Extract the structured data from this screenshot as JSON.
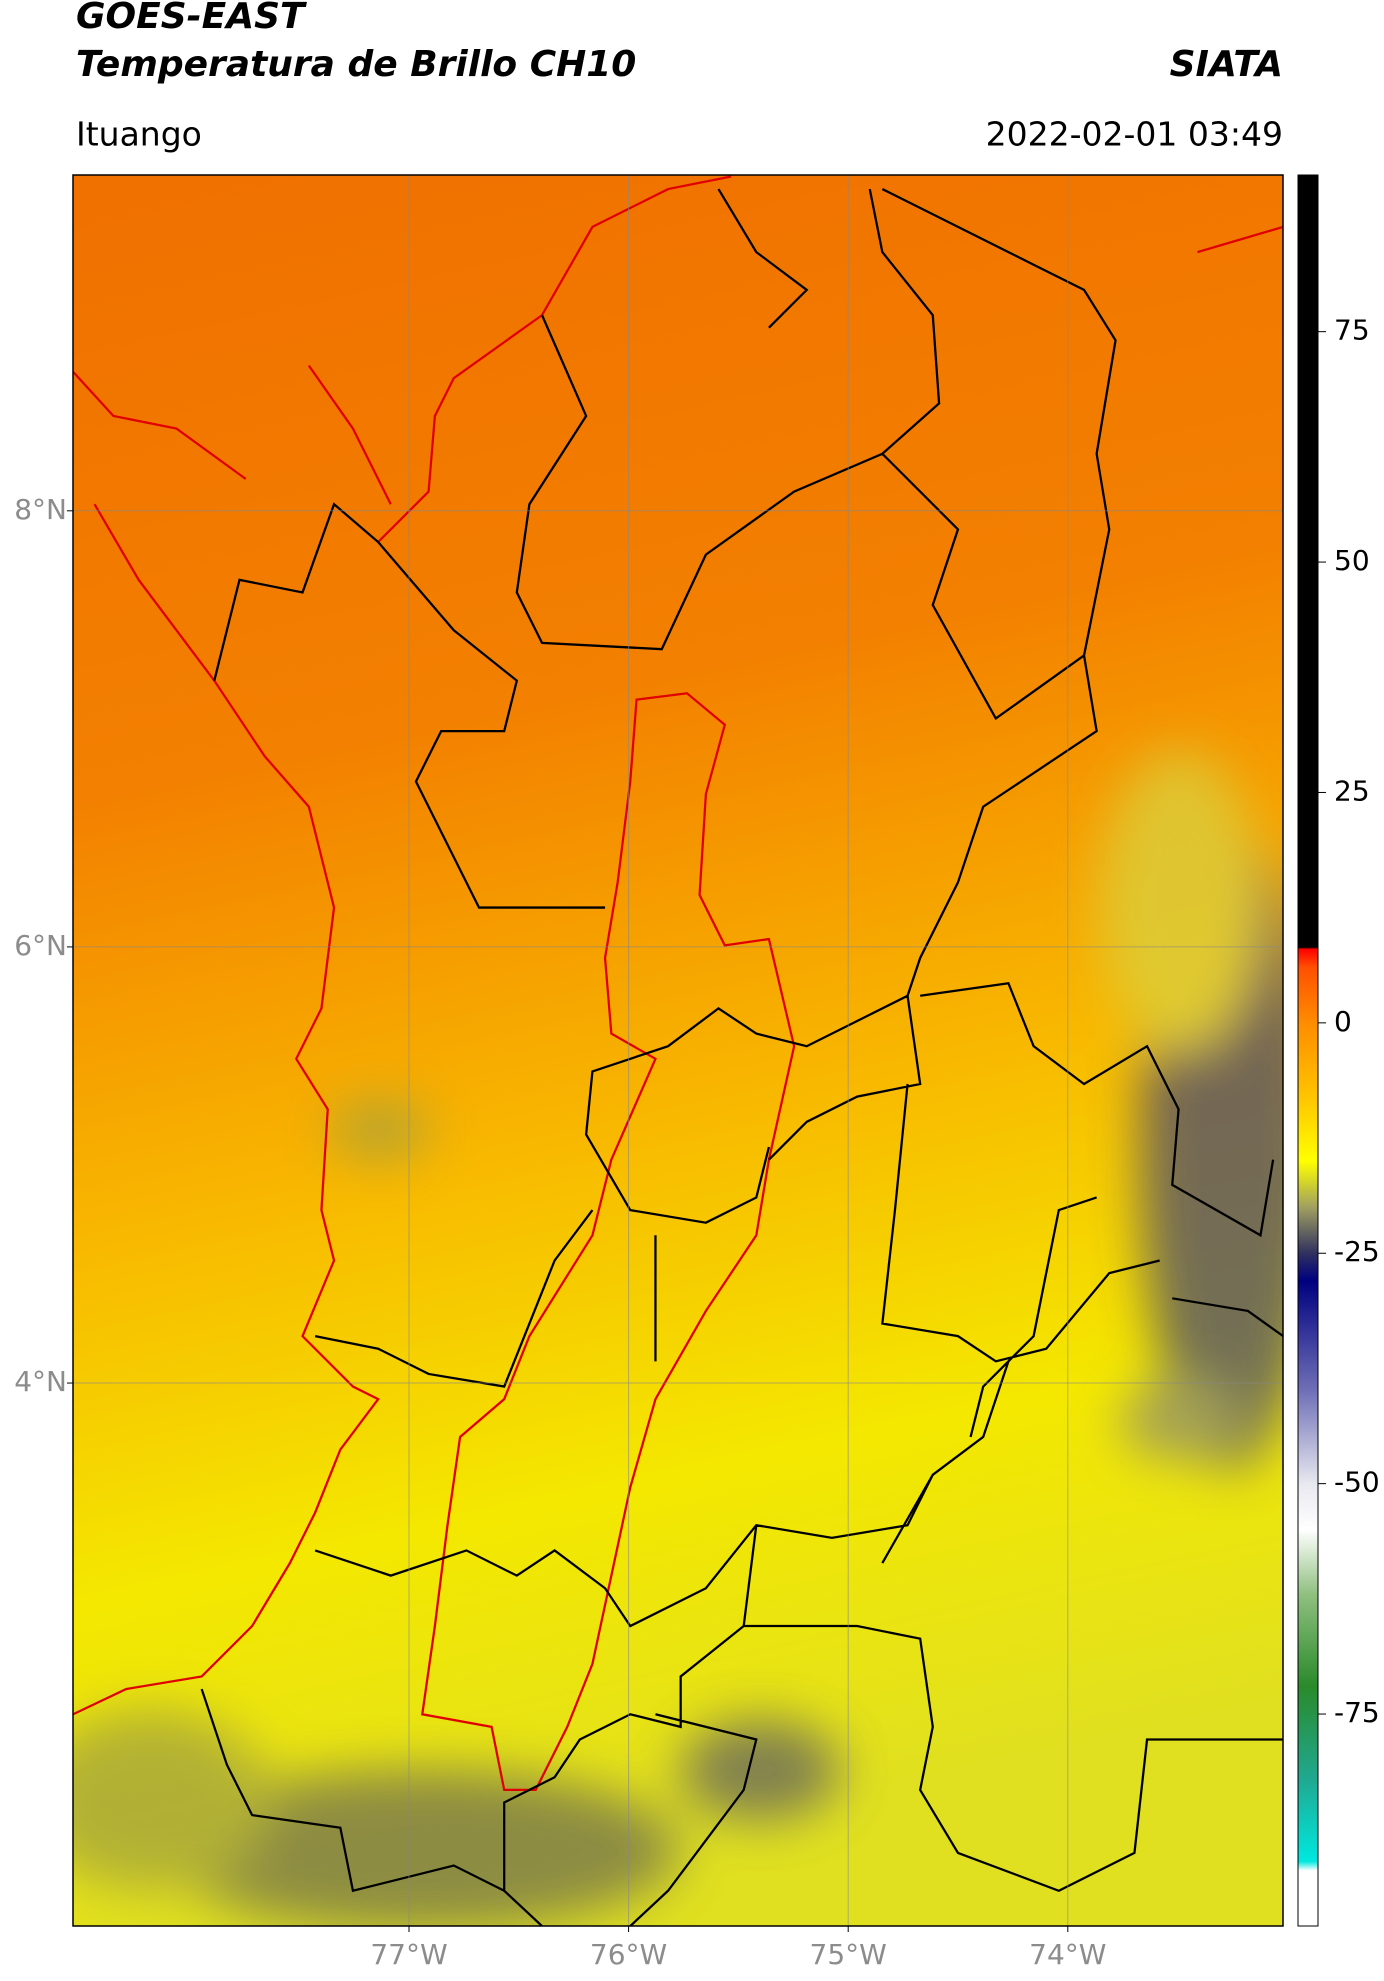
{
  "chart_data": {
    "type": "map",
    "title": "GOES-EAST",
    "subtitle": "Temperatura de Brillo CH10",
    "source": "SIATA",
    "location": "Ituango",
    "timestamp": "2022-02-01 03:49",
    "xlim": [
      -78.53,
      -73.02
    ],
    "ylim": [
      1.51,
      9.54
    ],
    "xticks": [
      {
        "value": -77,
        "label": "77°W"
      },
      {
        "value": -76,
        "label": "76°W"
      },
      {
        "value": -75,
        "label": "75°W"
      },
      {
        "value": -74,
        "label": "74°W"
      }
    ],
    "yticks": [
      {
        "value": 4,
        "label": "4°N"
      },
      {
        "value": 6,
        "label": "6°N"
      },
      {
        "value": 8,
        "label": "8°N"
      }
    ],
    "grid": true,
    "colorbar": {
      "clim": [
        -98,
        92
      ],
      "ticks": [
        -75,
        -50,
        -25,
        0,
        25,
        50,
        75
      ],
      "stops": [
        {
          "value": 92,
          "color": "#000000"
        },
        {
          "value": 8.2,
          "color": "#000000"
        },
        {
          "value": 8,
          "color": "#ff0000"
        },
        {
          "value": 6,
          "color": "#ff5000"
        },
        {
          "value": 0,
          "color": "#ff8c00"
        },
        {
          "value": -8,
          "color": "#ffc400"
        },
        {
          "value": -15,
          "color": "#ffff00"
        },
        {
          "value": -20,
          "color": "#a0a060"
        },
        {
          "value": -25,
          "color": "#303060"
        },
        {
          "value": -28,
          "color": "#000080"
        },
        {
          "value": -40,
          "color": "#7070b8"
        },
        {
          "value": -50,
          "color": "#e8e8f0"
        },
        {
          "value": -55,
          "color": "#ffffff"
        },
        {
          "value": -62,
          "color": "#90c080"
        },
        {
          "value": -72,
          "color": "#2a8a2a"
        },
        {
          "value": -82,
          "color": "#20a890"
        },
        {
          "value": -91,
          "color": "#00e8e0"
        },
        {
          "value": -92,
          "color": "#ffffff"
        },
        {
          "value": -98,
          "color": "#ffffff"
        }
      ]
    }
  }
}
